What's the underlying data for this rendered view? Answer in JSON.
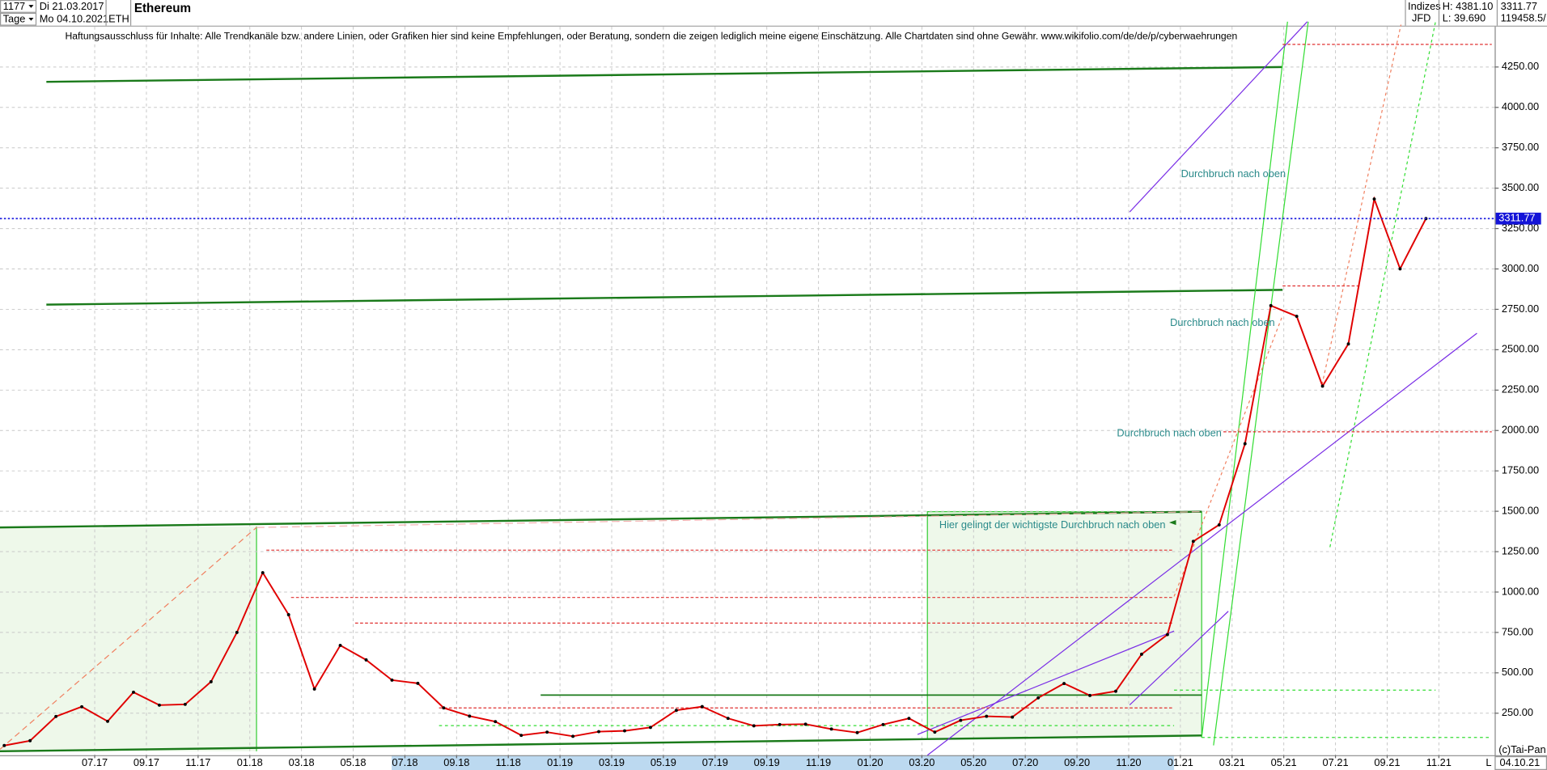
{
  "header": {
    "count": "1177",
    "start_date": "Di 21.03.2017",
    "period": "Tage",
    "end_date": "Mo 04.10.2021",
    "symbol": "ETH",
    "market": "Indizes",
    "broker": "JFD",
    "high": "H: 4381.10",
    "low": "L: 39.690",
    "volume": "119458.5/",
    "copyright": "(c)Tai-Pan",
    "axis_date": "04.10.21",
    "scale_mode": "L"
  },
  "disclaimer": "Haftungsausschluss für Inhalte: Alle Trendkanäle bzw. andere Linien, oder Grafiken hier sind keine Empfehlungen, oder Beratung, sondern die zeigen lediglich meine eigene Einschätzung. Alle Chartdaten sind ohne Gewähr.  www.wikifolio.com/de/de/p/cyberwaehrungen",
  "chart_data": {
    "type": "line",
    "title": "Ethereum",
    "color": "#e00000",
    "categories": [
      null,
      null,
      null,
      null,
      "07.17",
      null,
      "09.17",
      null,
      "11.17",
      null,
      "01.18",
      null,
      "03.18",
      null,
      "05.18",
      null,
      "07.18",
      null,
      "09.18",
      null,
      "11.18",
      null,
      "01.19",
      null,
      "03.19",
      null,
      "05.19",
      null,
      "07.19",
      null,
      "09.19",
      null,
      "11.19",
      null,
      "01.20",
      null,
      "03.20",
      null,
      "05.20",
      null,
      "07.20",
      null,
      "09.20",
      null,
      "11.20",
      null,
      "01.21",
      null,
      "03.21",
      null,
      "05.21",
      null,
      "07.21",
      null,
      "09.21",
      null,
      "11.21",
      null
    ],
    "values": [
      50,
      80,
      230,
      290,
      200,
      380,
      300,
      305,
      445,
      750,
      1120,
      860,
      400,
      670,
      580,
      455,
      435,
      283,
      232,
      198,
      113,
      133,
      107,
      136,
      141,
      162,
      268,
      291,
      218,
      172,
      180,
      182,
      152,
      130,
      180,
      218,
      133,
      206,
      231,
      226,
      345,
      434,
      360,
      386,
      615,
      737,
      1314,
      1416,
      1918,
      2773,
      2707,
      2275,
      2536,
      3433,
      3001,
      3311.77,
      null,
      null
    ],
    "ylim": [
      -10,
      4500
    ],
    "yticks": [
      {
        "value": 250,
        "label": "250.00"
      },
      {
        "value": 500,
        "label": "500.00"
      },
      {
        "value": 750,
        "label": "750.00"
      },
      {
        "value": 1000,
        "label": "1000.00"
      },
      {
        "value": 1250,
        "label": "1250.00"
      },
      {
        "value": 1500,
        "label": "1500.00"
      },
      {
        "value": 1750,
        "label": "1750.00"
      },
      {
        "value": 2000,
        "label": "2000.00"
      },
      {
        "value": 2250,
        "label": "2250.00"
      },
      {
        "value": 2500,
        "label": "2500.00"
      },
      {
        "value": 2750,
        "label": "2750.00"
      },
      {
        "value": 3000,
        "label": "3000.00"
      },
      {
        "value": 3250,
        "label": "3250.00"
      },
      {
        "value": 3500,
        "label": "3500.00"
      },
      {
        "value": 3750,
        "label": "3750.00"
      },
      {
        "value": 4000,
        "label": "4000.00"
      },
      {
        "value": 4250,
        "label": "4250.00"
      }
    ],
    "grid": true,
    "last_price": 3311.77,
    "annotations": [
      "Durchbruch nach oben",
      "Durchbruch nach oben",
      "Durchbruch nach oben",
      "Hier gelingt der wichtigste Durchbruch nach oben"
    ]
  }
}
